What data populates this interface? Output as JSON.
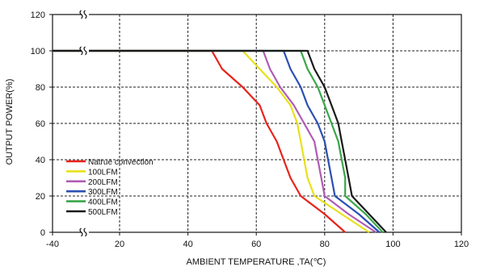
{
  "chart_data": {
    "type": "line",
    "xlabel": "AMBIENT TEMPERATURE ,TA(℃)",
    "ylabel": "OUTPUT POWER(%)",
    "x_ticks": [
      "-40",
      "20",
      "40",
      "60",
      "80",
      "100",
      "120"
    ],
    "y_ticks": [
      "0",
      "20",
      "40",
      "60",
      "80",
      "100",
      "120"
    ],
    "xlim": [
      -40,
      120
    ],
    "ylim": [
      0,
      120
    ],
    "axis_break": "between -40 and 20",
    "grid": "dashed",
    "legend_position": "bottom-left",
    "series": [
      {
        "name": "Natrue convection",
        "color": "#e8231b",
        "points": [
          [
            -40,
            100
          ],
          [
            47,
            100
          ],
          [
            50,
            90
          ],
          [
            56,
            80
          ],
          [
            61,
            70
          ],
          [
            63,
            60
          ],
          [
            66,
            50
          ],
          [
            68,
            40
          ],
          [
            70,
            30
          ],
          [
            73,
            20
          ],
          [
            80,
            10
          ],
          [
            86,
            0
          ]
        ]
      },
      {
        "name": "100LFM",
        "color": "#e8e01a",
        "points": [
          [
            -40,
            100
          ],
          [
            56,
            100
          ],
          [
            61,
            90
          ],
          [
            66,
            80
          ],
          [
            70,
            70
          ],
          [
            72,
            60
          ],
          [
            73,
            50
          ],
          [
            74,
            40
          ],
          [
            75,
            30
          ],
          [
            77,
            20
          ],
          [
            85,
            10
          ],
          [
            93,
            0
          ]
        ]
      },
      {
        "name": "200LFM",
        "color": "#b05bb5",
        "points": [
          [
            -40,
            100
          ],
          [
            62,
            100
          ],
          [
            64,
            90
          ],
          [
            67,
            80
          ],
          [
            71,
            70
          ],
          [
            74,
            60
          ],
          [
            77,
            50
          ],
          [
            78,
            40
          ],
          [
            79,
            30
          ],
          [
            80,
            20
          ],
          [
            87,
            10
          ],
          [
            95,
            0
          ]
        ]
      },
      {
        "name": "300LFM",
        "color": "#2b4fb3",
        "points": [
          [
            -40,
            100
          ],
          [
            68,
            100
          ],
          [
            70,
            90
          ],
          [
            73,
            80
          ],
          [
            75,
            70
          ],
          [
            78,
            60
          ],
          [
            80,
            50
          ],
          [
            81,
            40
          ],
          [
            82,
            30
          ],
          [
            83,
            20
          ],
          [
            90,
            10
          ],
          [
            96,
            0
          ]
        ]
      },
      {
        "name": "400LFM",
        "color": "#3aa64a",
        "points": [
          [
            -40,
            100
          ],
          [
            73,
            100
          ],
          [
            75,
            90
          ],
          [
            78,
            80
          ],
          [
            80,
            70
          ],
          [
            82,
            60
          ],
          [
            84,
            50
          ],
          [
            85,
            40
          ],
          [
            86,
            30
          ],
          [
            86,
            20
          ],
          [
            92,
            10
          ],
          [
            97,
            0
          ]
        ]
      },
      {
        "name": "500LFM",
        "color": "#1a1a1a",
        "points": [
          [
            -40,
            100
          ],
          [
            75,
            100
          ],
          [
            77,
            90
          ],
          [
            80,
            80
          ],
          [
            82,
            70
          ],
          [
            84,
            60
          ],
          [
            85,
            50
          ],
          [
            86,
            40
          ],
          [
            87,
            30
          ],
          [
            88,
            20
          ],
          [
            93,
            10
          ],
          [
            98,
            0
          ]
        ]
      }
    ]
  }
}
